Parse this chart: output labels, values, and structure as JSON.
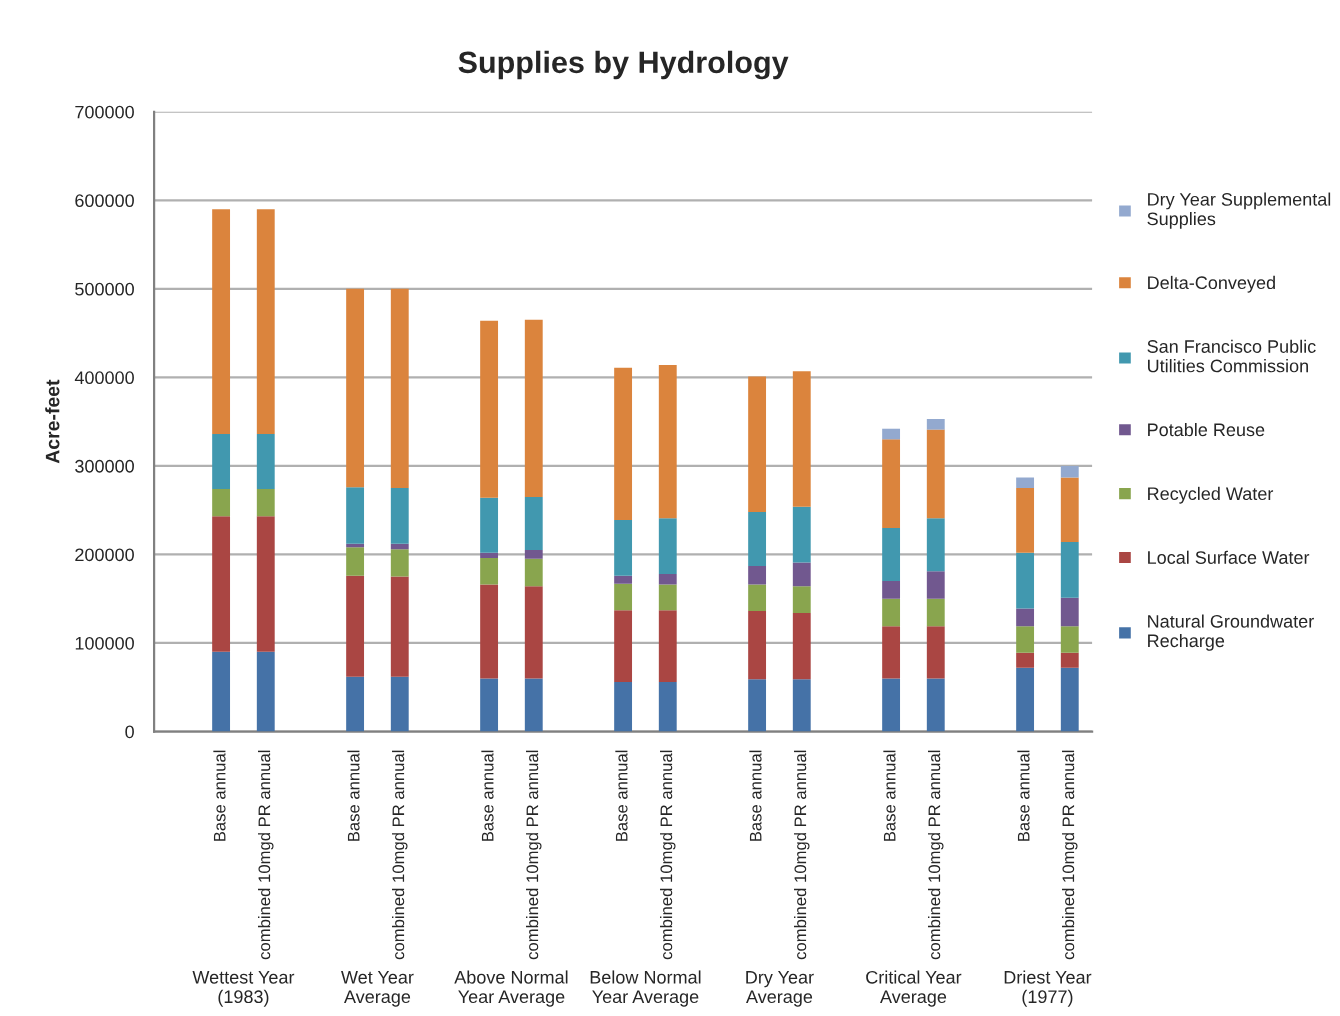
{
  "chart_data": {
    "type": "bar",
    "stacked": true,
    "title": "Supplies by Hydrology",
    "ylabel": "Acre-feet",
    "categories": [
      null,
      "Base annual",
      "combined 10mgd PR annual",
      null,
      "Base annual",
      "combined 10mgd PR annual",
      null,
      "Base annual",
      "combined 10mgd PR annual",
      null,
      "Base annual",
      "combined 10mgd PR annual",
      null,
      "Base annual",
      "combined 10mgd PR annual",
      null,
      "Base annual",
      "combined 10mgd PR annual",
      null,
      "Base annual",
      "combined 10mgd PR annual"
    ],
    "series": [
      {
        "name": "Natural Groundwater Recharge",
        "color": "#4572a7",
        "values": [
          null,
          90000,
          90000,
          null,
          62000,
          62000,
          null,
          60000,
          60000,
          null,
          56000,
          56000,
          null,
          59000,
          59000,
          null,
          60000,
          60000,
          null,
          72000,
          72000
        ]
      },
      {
        "name": "Local Surface Water",
        "color": "#aa4643",
        "values": [
          null,
          153000,
          153000,
          null,
          114000,
          113000,
          null,
          106000,
          104000,
          null,
          81000,
          81000,
          null,
          77000,
          75000,
          null,
          59000,
          59000,
          null,
          17000,
          17000
        ]
      },
      {
        "name": "Recycled Water",
        "color": "#89a54e",
        "values": [
          null,
          31000,
          31000,
          null,
          32000,
          31000,
          null,
          30000,
          31000,
          null,
          30000,
          29000,
          null,
          30000,
          30000,
          null,
          31000,
          31000,
          null,
          30000,
          30000
        ]
      },
      {
        "name": "Potable Reuse",
        "color": "#71588f",
        "values": [
          null,
          0,
          0,
          null,
          4000,
          6000,
          null,
          6000,
          10000,
          null,
          9000,
          12000,
          null,
          21000,
          27000,
          null,
          20000,
          31000,
          null,
          20000,
          32000
        ]
      },
      {
        "name": "San Francisco Public Utilities Commission",
        "color": "#4198af",
        "values": [
          null,
          62000,
          62000,
          null,
          64000,
          63000,
          null,
          62000,
          60000,
          null,
          63000,
          63000,
          null,
          61000,
          63000,
          null,
          60000,
          60000,
          null,
          63000,
          63000
        ]
      },
      {
        "name": "Delta-Conveyed",
        "color": "#db843d",
        "values": [
          null,
          254000,
          254000,
          null,
          224000,
          225000,
          null,
          200000,
          200000,
          null,
          172000,
          173000,
          null,
          153000,
          153000,
          null,
          100000,
          100000,
          null,
          73000,
          73000
        ]
      },
      {
        "name": "Dry Year Supplemental Supplies",
        "color": "#93a9cf",
        "values": [
          null,
          0,
          0,
          null,
          0,
          0,
          null,
          0,
          0,
          null,
          0,
          0,
          null,
          0,
          0,
          null,
          12000,
          12000,
          null,
          12000,
          13000
        ]
      }
    ],
    "ylim": [
      0,
      700000
    ],
    "yticks": [
      0,
      100000,
      200000,
      300000,
      400000,
      500000,
      600000,
      700000
    ],
    "grid": "y",
    "legend": "right",
    "annotations": [
      "Wettest Year (1983)",
      "Wet Year Average",
      "Above Normal Year Average",
      "Below Normal Year Average",
      "Dry Year Average",
      "Critical Year Average",
      "Driest Year (1977)"
    ]
  }
}
